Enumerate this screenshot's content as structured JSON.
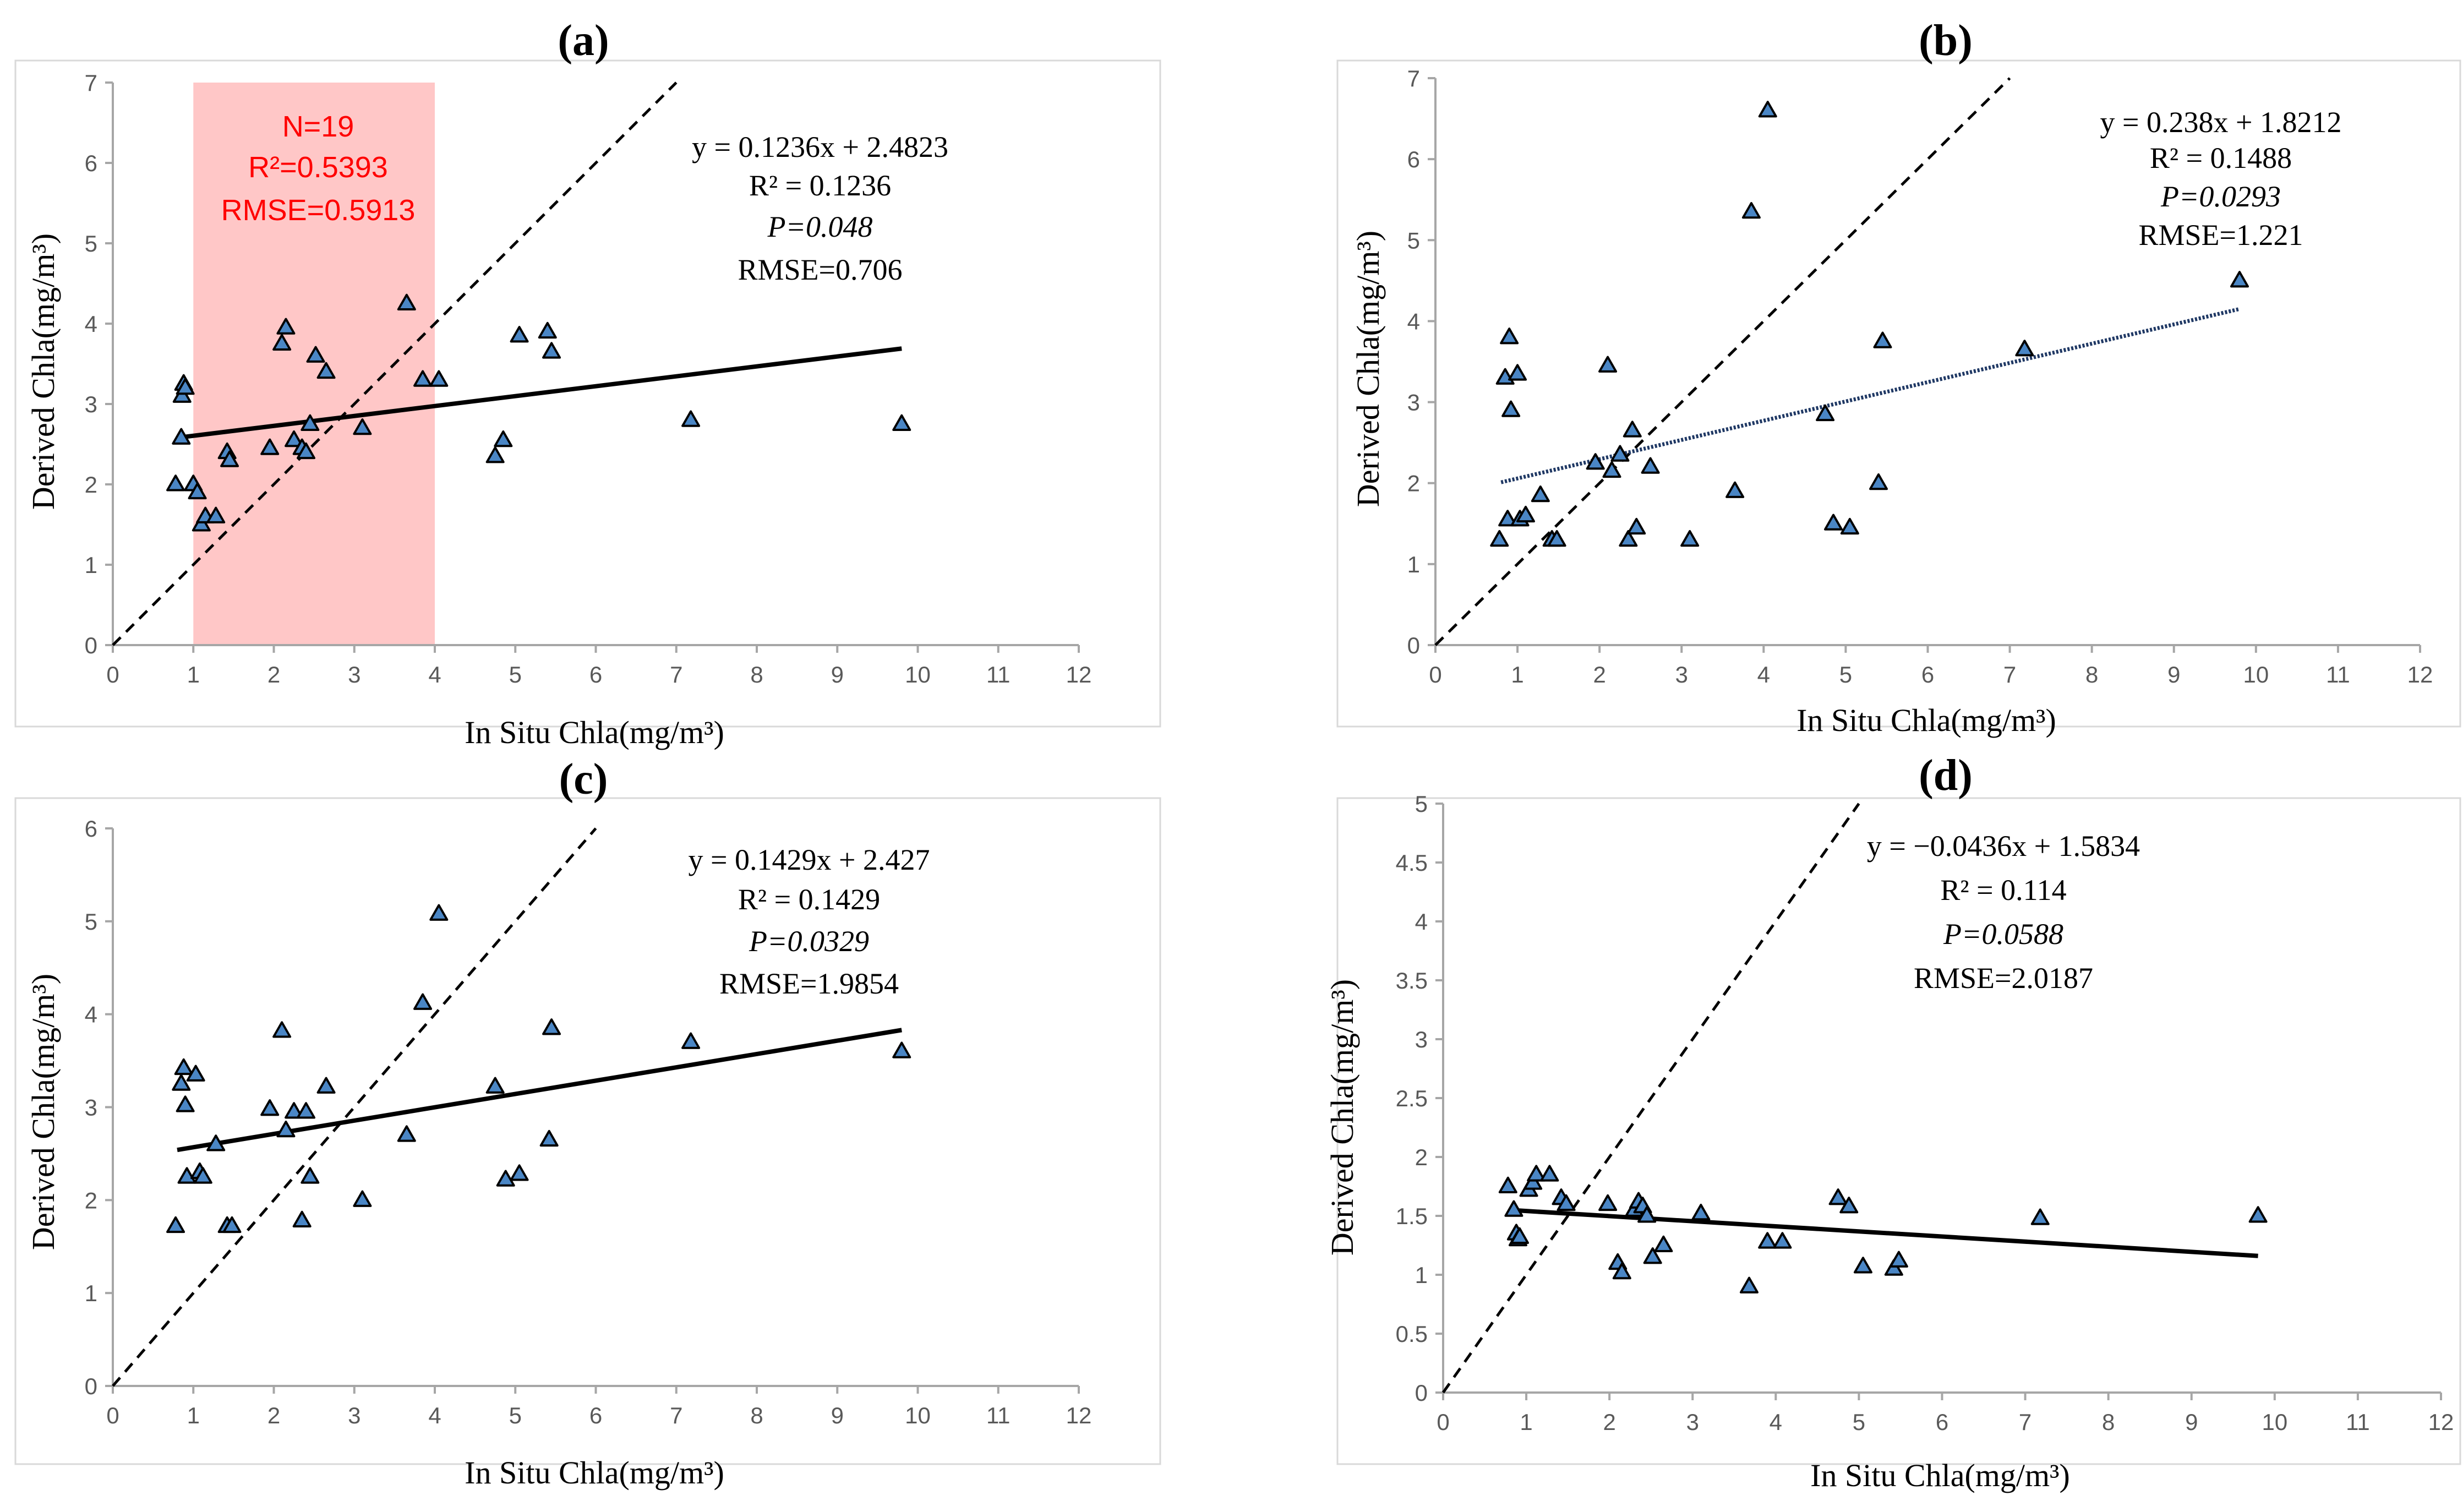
{
  "chart_data": [
    {
      "id": "a",
      "type": "scatter",
      "title": "(a)",
      "xlabel": "In Situ Chla(mg/m³)",
      "ylabel": "Derived Chla(mg/m³)",
      "xlim": [
        0,
        12
      ],
      "ylim": [
        0,
        7
      ],
      "xticks": [
        "0",
        "1",
        "2",
        "3",
        "4",
        "5",
        "6",
        "7",
        "8",
        "9",
        "10",
        "11",
        "12"
      ],
      "yticks": [
        "0",
        "1",
        "2",
        "3",
        "4",
        "5",
        "6",
        "7"
      ],
      "grid": false,
      "marker_color": "#4a86c5",
      "points": {
        "x": [
          0.78,
          0.85,
          0.86,
          0.88,
          0.9,
          1.0,
          1.05,
          1.1,
          1.15,
          1.28,
          1.42,
          1.45,
          1.95,
          2.1,
          2.15,
          2.25,
          2.35,
          2.4,
          2.45,
          2.52,
          2.65,
          3.1,
          3.65,
          3.85,
          4.05,
          4.75,
          4.85,
          5.05,
          5.4,
          5.45,
          7.18,
          9.8
        ],
        "y": [
          2.0,
          2.58,
          3.1,
          3.25,
          3.2,
          2.0,
          1.9,
          1.5,
          1.6,
          1.6,
          2.4,
          2.3,
          2.45,
          3.75,
          3.95,
          2.55,
          2.45,
          2.4,
          2.75,
          3.6,
          3.4,
          2.7,
          4.25,
          3.3,
          3.3,
          2.35,
          2.55,
          3.85,
          3.9,
          3.65,
          2.8,
          2.75
        ]
      },
      "fit": {
        "x": [
          0.8,
          9.8
        ],
        "y": [
          2.58,
          3.69
        ],
        "style": "solid"
      },
      "one_to_one": true,
      "highlight": {
        "x_range": [
          1,
          4
        ],
        "labels": [
          "N=19",
          "R²=0.5393",
          "RMSE=0.5913"
        ]
      },
      "annotations": [
        "y = 0.1236x + 2.4823",
        "R² = 0.1236",
        "P=0.048",
        "RMSE=0.706"
      ]
    },
    {
      "id": "b",
      "type": "scatter",
      "title": "(b)",
      "xlabel": "In Situ Chla(mg/m³)",
      "ylabel": "Derived Chla(mg/m³)",
      "xlim": [
        0,
        12
      ],
      "ylim": [
        0,
        7
      ],
      "xticks": [
        "0",
        "1",
        "2",
        "3",
        "4",
        "5",
        "6",
        "7",
        "8",
        "9",
        "10",
        "11",
        "12"
      ],
      "yticks": [
        "0",
        "1",
        "2",
        "3",
        "4",
        "5",
        "6",
        "7"
      ],
      "grid": false,
      "marker_color": "#4a86c5",
      "points": {
        "x": [
          0.78,
          0.85,
          0.88,
          0.9,
          0.92,
          1.0,
          1.03,
          1.1,
          1.28,
          1.42,
          1.48,
          1.95,
          2.1,
          2.15,
          2.25,
          2.35,
          2.4,
          2.45,
          2.62,
          3.1,
          3.65,
          3.85,
          4.05,
          4.75,
          4.85,
          5.05,
          5.4,
          5.45,
          7.18,
          9.8
        ],
        "y": [
          1.3,
          3.3,
          1.55,
          3.8,
          2.9,
          3.35,
          1.55,
          1.6,
          1.85,
          1.3,
          1.3,
          2.25,
          3.45,
          2.15,
          2.35,
          1.3,
          2.65,
          1.45,
          2.2,
          1.3,
          1.9,
          5.35,
          6.6,
          2.85,
          1.5,
          1.45,
          2.0,
          3.75,
          3.65,
          4.5
        ]
      },
      "fit": {
        "x": [
          0.8,
          9.8
        ],
        "y": [
          2.01,
          4.15
        ],
        "style": "dotted"
      },
      "one_to_one": true,
      "annotations": [
        "y = 0.238x + 1.8212",
        "R² = 0.1488",
        "P=0.0293",
        "RMSE=1.221"
      ]
    },
    {
      "id": "c",
      "type": "scatter",
      "title": "(c)",
      "xlabel": "In Situ Chla(mg/m³)",
      "ylabel": "Derived Chla(mg/m³)",
      "xlim": [
        0,
        12
      ],
      "ylim": [
        0,
        6
      ],
      "xticks": [
        "0",
        "1",
        "2",
        "3",
        "4",
        "5",
        "6",
        "7",
        "8",
        "9",
        "10",
        "11",
        "12"
      ],
      "yticks": [
        "0",
        "1",
        "2",
        "3",
        "4",
        "5",
        "6"
      ],
      "grid": false,
      "marker_color": "#4a86c5",
      "points": {
        "x": [
          0.78,
          0.85,
          0.88,
          0.9,
          0.92,
          1.03,
          1.08,
          1.12,
          1.28,
          1.42,
          1.48,
          1.95,
          2.1,
          2.15,
          2.25,
          2.35,
          2.4,
          2.45,
          2.65,
          3.1,
          3.65,
          3.85,
          4.05,
          4.75,
          4.88,
          5.05,
          5.42,
          5.45,
          7.18,
          9.8
        ],
        "y": [
          1.72,
          3.25,
          3.42,
          3.02,
          2.25,
          3.35,
          2.3,
          2.25,
          2.6,
          1.72,
          1.72,
          2.98,
          3.82,
          2.75,
          2.95,
          1.78,
          2.95,
          2.25,
          3.22,
          2.0,
          2.7,
          4.12,
          5.08,
          3.22,
          2.22,
          2.28,
          2.65,
          3.85,
          3.7,
          3.6
        ]
      },
      "fit": {
        "x": [
          0.8,
          9.8
        ],
        "y": [
          2.54,
          3.83
        ],
        "style": "solid"
      },
      "one_to_one": true,
      "annotations": [
        "y = 0.1429x + 2.427",
        "R² = 0.1429",
        "P=0.0329",
        "RMSE=1.9854"
      ]
    },
    {
      "id": "d",
      "type": "scatter",
      "title": "(d)",
      "xlabel": "In Situ Chla(mg/m³)",
      "ylabel": "Derived Chla(mg/m³)",
      "xlim": [
        0,
        12
      ],
      "ylim": [
        0,
        5
      ],
      "xticks": [
        "0",
        "1",
        "2",
        "3",
        "4",
        "5",
        "6",
        "7",
        "8",
        "9",
        "10",
        "11",
        "12"
      ],
      "yticks": [
        "0",
        "0.5",
        "1",
        "1.5",
        "2",
        "2.5",
        "3",
        "3.5",
        "4",
        "4.5",
        "5"
      ],
      "grid": false,
      "marker_color": "#4a86c5",
      "points": {
        "x": [
          0.78,
          0.85,
          0.88,
          0.9,
          0.92,
          1.03,
          1.08,
          1.12,
          1.28,
          1.42,
          1.48,
          1.98,
          2.1,
          2.15,
          2.3,
          2.35,
          2.4,
          2.45,
          2.52,
          2.65,
          3.1,
          3.68,
          3.9,
          4.08,
          4.75,
          4.88,
          5.05,
          5.42,
          5.48,
          7.18,
          9.8
        ],
        "y": [
          1.75,
          1.55,
          1.35,
          1.3,
          1.32,
          1.72,
          1.78,
          1.85,
          1.85,
          1.65,
          1.6,
          1.6,
          1.1,
          1.02,
          1.55,
          1.62,
          1.58,
          1.5,
          1.15,
          1.25,
          1.52,
          0.9,
          1.28,
          1.28,
          1.65,
          1.58,
          1.07,
          1.05,
          1.12,
          1.48,
          1.5
        ]
      },
      "fit": {
        "x": [
          0.8,
          9.8
        ],
        "y": [
          1.55,
          1.16
        ],
        "style": "solid"
      },
      "one_to_one": true,
      "annotations": [
        "y = −0.0436x + 1.5834",
        "R² = 0.114",
        "P=0.0588",
        "RMSE=2.0187"
      ]
    }
  ]
}
